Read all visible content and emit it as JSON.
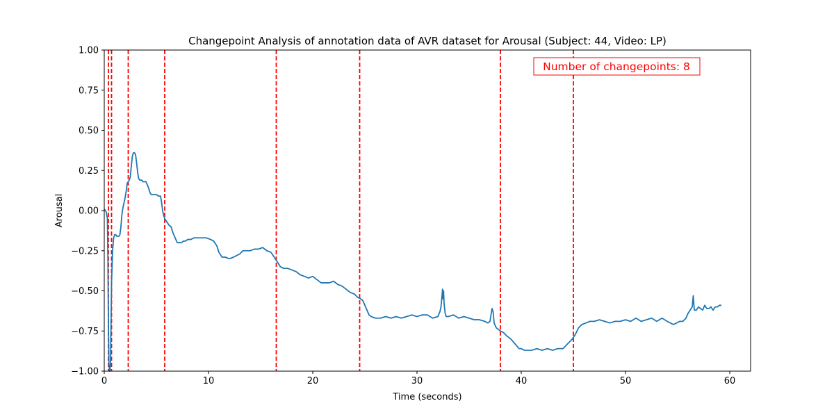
{
  "chart_data": {
    "type": "line",
    "title": "Changepoint Analysis of annotation data of AVR dataset for Arousal (Subject: 44, Video: LP)",
    "xlabel": "Time (seconds)",
    "ylabel": "Arousal",
    "xlim": [
      0,
      62
    ],
    "ylim": [
      -1.0,
      1.0
    ],
    "x_ticks": [
      0,
      10,
      20,
      30,
      40,
      50,
      60
    ],
    "x_tick_labels": [
      "0",
      "10",
      "20",
      "30",
      "40",
      "50",
      "60"
    ],
    "y_ticks": [
      -1.0,
      -0.75,
      -0.5,
      -0.25,
      0.0,
      0.25,
      0.5,
      0.75,
      1.0
    ],
    "y_tick_labels": [
      "−1.00",
      "−0.75",
      "−0.50",
      "−0.25",
      "0.00",
      "0.25",
      "0.50",
      "0.75",
      "1.00"
    ],
    "grid": false,
    "series": [
      {
        "color": "#1f77b4",
        "x": [
          0,
          0.1,
          0.2,
          0.3,
          0.35,
          0.4,
          0.45,
          0.5,
          0.55,
          0.6,
          0.65,
          0.7,
          0.8,
          0.9,
          1.0,
          1.1,
          1.2,
          1.3,
          1.4,
          1.5,
          1.6,
          1.7,
          1.8,
          1.9,
          2.0,
          2.1,
          2.2,
          2.3,
          2.4,
          2.5,
          2.6,
          2.7,
          2.8,
          2.9,
          3.0,
          3.1,
          3.2,
          3.3,
          3.4,
          3.5,
          3.6,
          3.7,
          3.8,
          4.0,
          4.2,
          4.4,
          4.5,
          4.6,
          4.8,
          5.0,
          5.2,
          5.4,
          5.5,
          5.6,
          5.7,
          5.8,
          6.0,
          6.2,
          6.4,
          6.6,
          6.8,
          7.0,
          7.2,
          7.4,
          7.6,
          7.8,
          8.0,
          8.3,
          8.6,
          9.0,
          9.4,
          9.8,
          10.2,
          10.5,
          10.8,
          11.0,
          11.3,
          11.6,
          12.0,
          12.4,
          12.7,
          13.0,
          13.3,
          13.6,
          14.0,
          14.4,
          14.8,
          15.2,
          15.6,
          16.0,
          16.3,
          16.6,
          16.9,
          17.2,
          17.6,
          18.0,
          18.4,
          18.8,
          19.2,
          19.6,
          20.0,
          20.4,
          20.8,
          21.2,
          21.6,
          22.0,
          22.4,
          22.8,
          23.2,
          23.6,
          24.0,
          24.3,
          24.6,
          24.8,
          25.0,
          25.2,
          25.4,
          25.6,
          26.0,
          26.5,
          27.0,
          27.5,
          28.0,
          28.5,
          29.0,
          29.5,
          30.0,
          30.5,
          31.0,
          31.5,
          32.0,
          32.2,
          32.3,
          32.4,
          32.45,
          32.5,
          32.55,
          32.6,
          32.7,
          32.8,
          33.0,
          33.5,
          34.0,
          34.5,
          35.0,
          35.5,
          36.0,
          36.5,
          36.8,
          37.0,
          37.1,
          37.2,
          37.3,
          37.4,
          37.6,
          37.8,
          38.0,
          38.3,
          38.6,
          39.0,
          39.4,
          39.8,
          40.0,
          40.3,
          40.6,
          41.0,
          41.5,
          42.0,
          42.5,
          43.0,
          43.5,
          44.0,
          44.3,
          44.6,
          44.9,
          45.2,
          45.5,
          45.8,
          46.2,
          46.6,
          47.0,
          47.5,
          48.0,
          48.5,
          49.0,
          49.5,
          50.0,
          50.5,
          51.0,
          51.5,
          52.0,
          52.5,
          53.0,
          53.5,
          54.0,
          54.3,
          54.6,
          54.9,
          55.2,
          55.5,
          55.8,
          56.0,
          56.2,
          56.4,
          56.5,
          56.6,
          56.8,
          57.0,
          57.2,
          57.4,
          57.6,
          57.8,
          58.0,
          58.2,
          58.4,
          58.6,
          58.8,
          59.0,
          59.2
        ],
        "y": [
          0.01,
          0.0,
          -0.01,
          -0.05,
          -0.3,
          -0.7,
          -0.95,
          -1.0,
          -1.0,
          -0.95,
          -0.7,
          -0.45,
          -0.25,
          -0.17,
          -0.15,
          -0.15,
          -0.16,
          -0.16,
          -0.16,
          -0.15,
          -0.1,
          -0.02,
          0.02,
          0.05,
          0.08,
          0.12,
          0.17,
          0.18,
          0.19,
          0.21,
          0.28,
          0.34,
          0.36,
          0.36,
          0.35,
          0.3,
          0.24,
          0.2,
          0.19,
          0.19,
          0.19,
          0.18,
          0.18,
          0.18,
          0.15,
          0.11,
          0.1,
          0.1,
          0.1,
          0.1,
          0.09,
          0.09,
          0.05,
          0.0,
          -0.03,
          -0.05,
          -0.07,
          -0.09,
          -0.1,
          -0.14,
          -0.17,
          -0.2,
          -0.2,
          -0.2,
          -0.19,
          -0.19,
          -0.18,
          -0.18,
          -0.17,
          -0.17,
          -0.17,
          -0.17,
          -0.18,
          -0.19,
          -0.22,
          -0.26,
          -0.29,
          -0.29,
          -0.3,
          -0.29,
          -0.28,
          -0.27,
          -0.25,
          -0.25,
          -0.25,
          -0.24,
          -0.24,
          -0.23,
          -0.25,
          -0.26,
          -0.29,
          -0.32,
          -0.35,
          -0.36,
          -0.36,
          -0.37,
          -0.38,
          -0.4,
          -0.41,
          -0.42,
          -0.41,
          -0.43,
          -0.45,
          -0.45,
          -0.45,
          -0.44,
          -0.46,
          -0.47,
          -0.49,
          -0.51,
          -0.52,
          -0.54,
          -0.55,
          -0.56,
          -0.59,
          -0.62,
          -0.65,
          -0.66,
          -0.67,
          -0.67,
          -0.66,
          -0.67,
          -0.66,
          -0.67,
          -0.66,
          -0.65,
          -0.66,
          -0.65,
          -0.65,
          -0.67,
          -0.66,
          -0.63,
          -0.6,
          -0.53,
          -0.49,
          -0.55,
          -0.5,
          -0.58,
          -0.64,
          -0.66,
          -0.66,
          -0.65,
          -0.67,
          -0.66,
          -0.67,
          -0.68,
          -0.68,
          -0.69,
          -0.7,
          -0.69,
          -0.65,
          -0.61,
          -0.63,
          -0.7,
          -0.73,
          -0.74,
          -0.75,
          -0.76,
          -0.78,
          -0.8,
          -0.83,
          -0.86,
          -0.86,
          -0.87,
          -0.87,
          -0.87,
          -0.86,
          -0.87,
          -0.86,
          -0.87,
          -0.86,
          -0.86,
          -0.84,
          -0.82,
          -0.8,
          -0.77,
          -0.73,
          -0.71,
          -0.7,
          -0.69,
          -0.69,
          -0.68,
          -0.69,
          -0.7,
          -0.69,
          -0.69,
          -0.68,
          -0.69,
          -0.67,
          -0.69,
          -0.68,
          -0.67,
          -0.69,
          -0.67,
          -0.69,
          -0.7,
          -0.71,
          -0.7,
          -0.69,
          -0.69,
          -0.67,
          -0.64,
          -0.62,
          -0.6,
          -0.53,
          -0.62,
          -0.62,
          -0.6,
          -0.61,
          -0.62,
          -0.59,
          -0.61,
          -0.61,
          -0.6,
          -0.62,
          -0.6,
          -0.6,
          -0.59,
          -0.59
        ]
      }
    ],
    "changepoints": [
      0.4,
      0.7,
      2.3,
      5.8,
      16.5,
      24.5,
      38.0,
      45.0
    ],
    "changepoint_color": "#ff0000",
    "annotation": {
      "text": "Number of changepoints: 8",
      "color": "#ff0000",
      "placement": "top-right"
    }
  }
}
